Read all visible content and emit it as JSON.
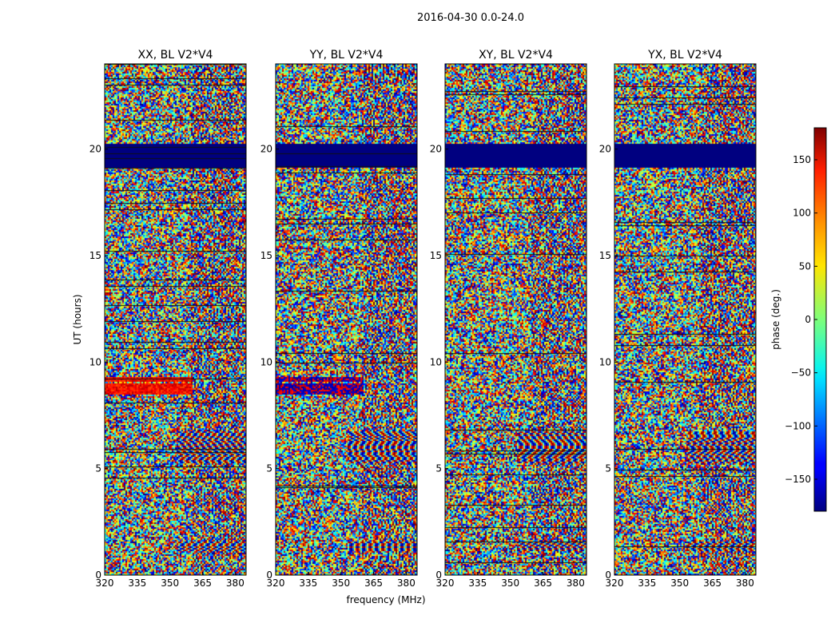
{
  "figure": {
    "suptitle": "2016-04-30 0.0-24.0",
    "xlabel": "frequency (MHz)",
    "ylabel": "UT (hours)"
  },
  "chart_data": {
    "type": "heatmap",
    "colormap": "jet",
    "xlim": [
      320,
      385
    ],
    "ylim": [
      0,
      24
    ],
    "xticks": [
      320,
      335,
      350,
      365,
      380
    ],
    "yticks": [
      0,
      5,
      10,
      15,
      20
    ],
    "panels": [
      {
        "title": "XX, BL V2*V4",
        "flagged_hours": [
          [
            19.2,
            20.3
          ]
        ],
        "high_phase_hours": [
          [
            8.5,
            9.0
          ],
          [
            9.1,
            9.3
          ]
        ],
        "low_phase_hours": [],
        "fringe_hours": [
          [
            5.3,
            6.8
          ],
          [
            1.2,
            1.6
          ]
        ]
      },
      {
        "title": "YY, BL V2*V4",
        "flagged_hours": [
          [
            19.2,
            20.3
          ]
        ],
        "high_phase_hours": [],
        "low_phase_hours": [
          [
            8.5,
            9.0
          ],
          [
            9.1,
            9.3
          ]
        ],
        "fringe_hours": [
          [
            5.3,
            6.8
          ],
          [
            1.2,
            1.6
          ]
        ]
      },
      {
        "title": "XY, BL V2*V4",
        "flagged_hours": [
          [
            19.2,
            20.3
          ]
        ],
        "high_phase_hours": [],
        "low_phase_hours": [],
        "fringe_hours": [
          [
            5.3,
            6.8
          ],
          [
            1.2,
            1.6
          ]
        ]
      },
      {
        "title": "YX, BL V2*V4",
        "flagged_hours": [
          [
            19.2,
            20.3
          ]
        ],
        "high_phase_hours": [],
        "low_phase_hours": [],
        "fringe_hours": [
          [
            5.3,
            6.8
          ],
          [
            1.2,
            1.6
          ]
        ]
      }
    ],
    "colorbar": {
      "label": "phase (deg.)",
      "range": [
        -180,
        180
      ],
      "ticks": [
        -150,
        -100,
        -50,
        0,
        50,
        100,
        150
      ]
    }
  }
}
